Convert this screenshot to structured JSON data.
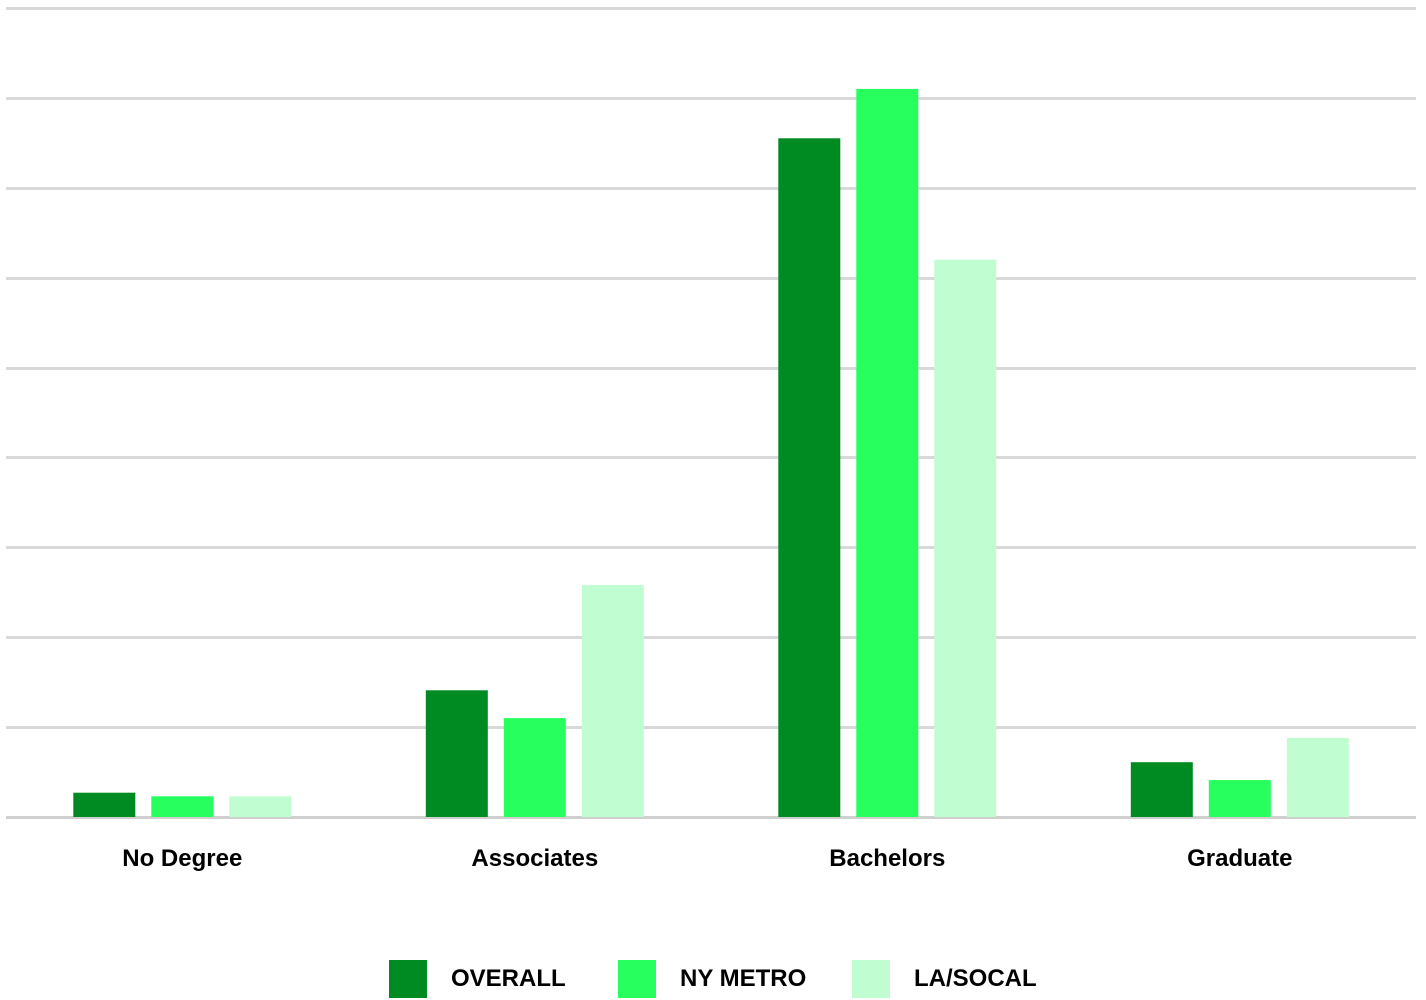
{
  "chart_data": {
    "type": "bar",
    "title": "",
    "xlabel": "",
    "ylabel": "",
    "categories": [
      "No Degree",
      "Associates",
      "Bachelors",
      "Graduate"
    ],
    "series": [
      {
        "name": "OVERALL",
        "color": "#008a22",
        "values": [
          2.7,
          14.1,
          75.5,
          6.1
        ]
      },
      {
        "name": "NY METRO",
        "color": "#27ff5e",
        "values": [
          2.3,
          11.0,
          81.0,
          4.1
        ]
      },
      {
        "name": "LA/SOCAL",
        "color": "#c0fdd0",
        "values": [
          2.3,
          25.8,
          62.0,
          8.8
        ]
      }
    ],
    "ylim": [
      0,
      90
    ],
    "ytick_step": 10,
    "grid": true,
    "legend": "bottom"
  }
}
